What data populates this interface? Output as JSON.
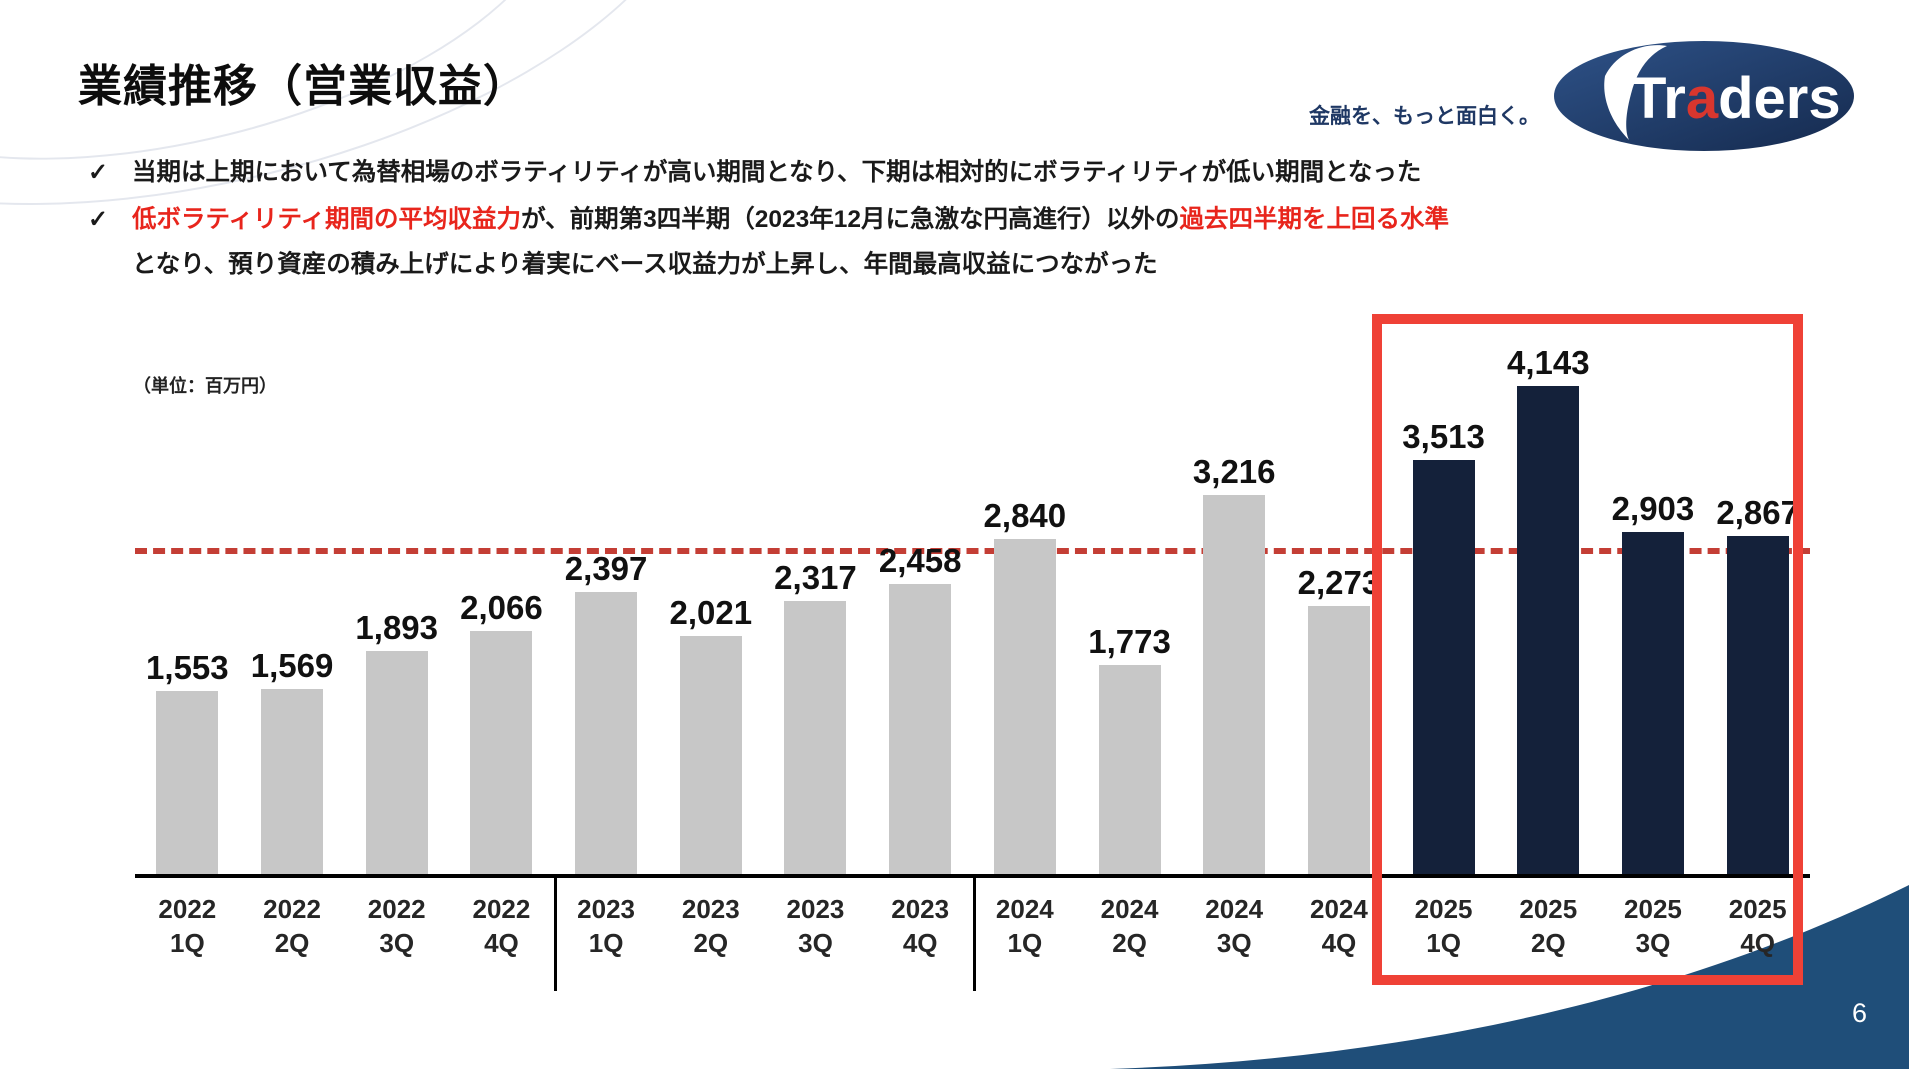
{
  "slide": {
    "title": "業績推移（営業収益）",
    "tagline": "金融を、もっと面白く。",
    "logo": {
      "text_pre": "Tr",
      "text_accent": "a",
      "text_post": "ders"
    },
    "page_number": "6",
    "bullets": [
      {
        "check": "✓",
        "lines": [
          [
            {
              "text": "当期は上期において為替相場のボラティリティが高い期間となり、下期は相対的にボラティリティが低い期間となった",
              "color": "black"
            }
          ]
        ]
      },
      {
        "check": "✓",
        "lines": [
          [
            {
              "text": "低ボラティリティ期間の平均収益力",
              "color": "red"
            },
            {
              "text": "が、前期第3四半期（2023年12月に急激な円高進行）以外の",
              "color": "black"
            },
            {
              "text": "過去四半期を上回る水準",
              "color": "red"
            }
          ],
          [
            {
              "text": "となり、預り資産の積み上げにより着実にベース収益力が上昇し、年間最高収益につながった",
              "color": "black"
            }
          ]
        ]
      }
    ]
  },
  "chart_data": {
    "type": "bar",
    "title": "業績推移（営業収益）",
    "unit_label": "（単位：百万円）",
    "categories": [
      {
        "year": "2022",
        "quarter": "1Q"
      },
      {
        "year": "2022",
        "quarter": "2Q"
      },
      {
        "year": "2022",
        "quarter": "3Q"
      },
      {
        "year": "2022",
        "quarter": "4Q"
      },
      {
        "year": "2023",
        "quarter": "1Q"
      },
      {
        "year": "2023",
        "quarter": "2Q"
      },
      {
        "year": "2023",
        "quarter": "3Q"
      },
      {
        "year": "2023",
        "quarter": "4Q"
      },
      {
        "year": "2024",
        "quarter": "1Q"
      },
      {
        "year": "2024",
        "quarter": "2Q"
      },
      {
        "year": "2024",
        "quarter": "3Q"
      },
      {
        "year": "2024",
        "quarter": "4Q"
      },
      {
        "year": "2025",
        "quarter": "1Q"
      },
      {
        "year": "2025",
        "quarter": "2Q"
      },
      {
        "year": "2025",
        "quarter": "3Q"
      },
      {
        "year": "2025",
        "quarter": "4Q"
      }
    ],
    "values": [
      1553,
      1569,
      1893,
      2066,
      2397,
      2021,
      2317,
      2458,
      2840,
      1773,
      3216,
      2273,
      3513,
      4143,
      2903,
      2867
    ],
    "value_labels": [
      "1,553",
      "1,569",
      "1,893",
      "2,066",
      "2,397",
      "2,021",
      "2,317",
      "2,458",
      "2,840",
      "1,773",
      "3,216",
      "2,273",
      "3,513",
      "4,143",
      "2,903",
      "2,867"
    ],
    "highlight_start_index": 12,
    "reference_line_value": 2800,
    "ylim": [
      0,
      4400
    ],
    "xlabel": "",
    "ylabel": "",
    "grid": false,
    "legend": false
  },
  "colors": {
    "text_black": "#1a1a1a",
    "accent_red": "#e8251c",
    "bar_gray": "#c7c7c7",
    "bar_navy": "#14213a",
    "highlight_box_red": "#ef4136",
    "dashed_line_red": "#c43e35",
    "brand_navy": "#1f3864",
    "wave_blue": "#1f4e79",
    "logo_accent_red": "#d8362e"
  }
}
